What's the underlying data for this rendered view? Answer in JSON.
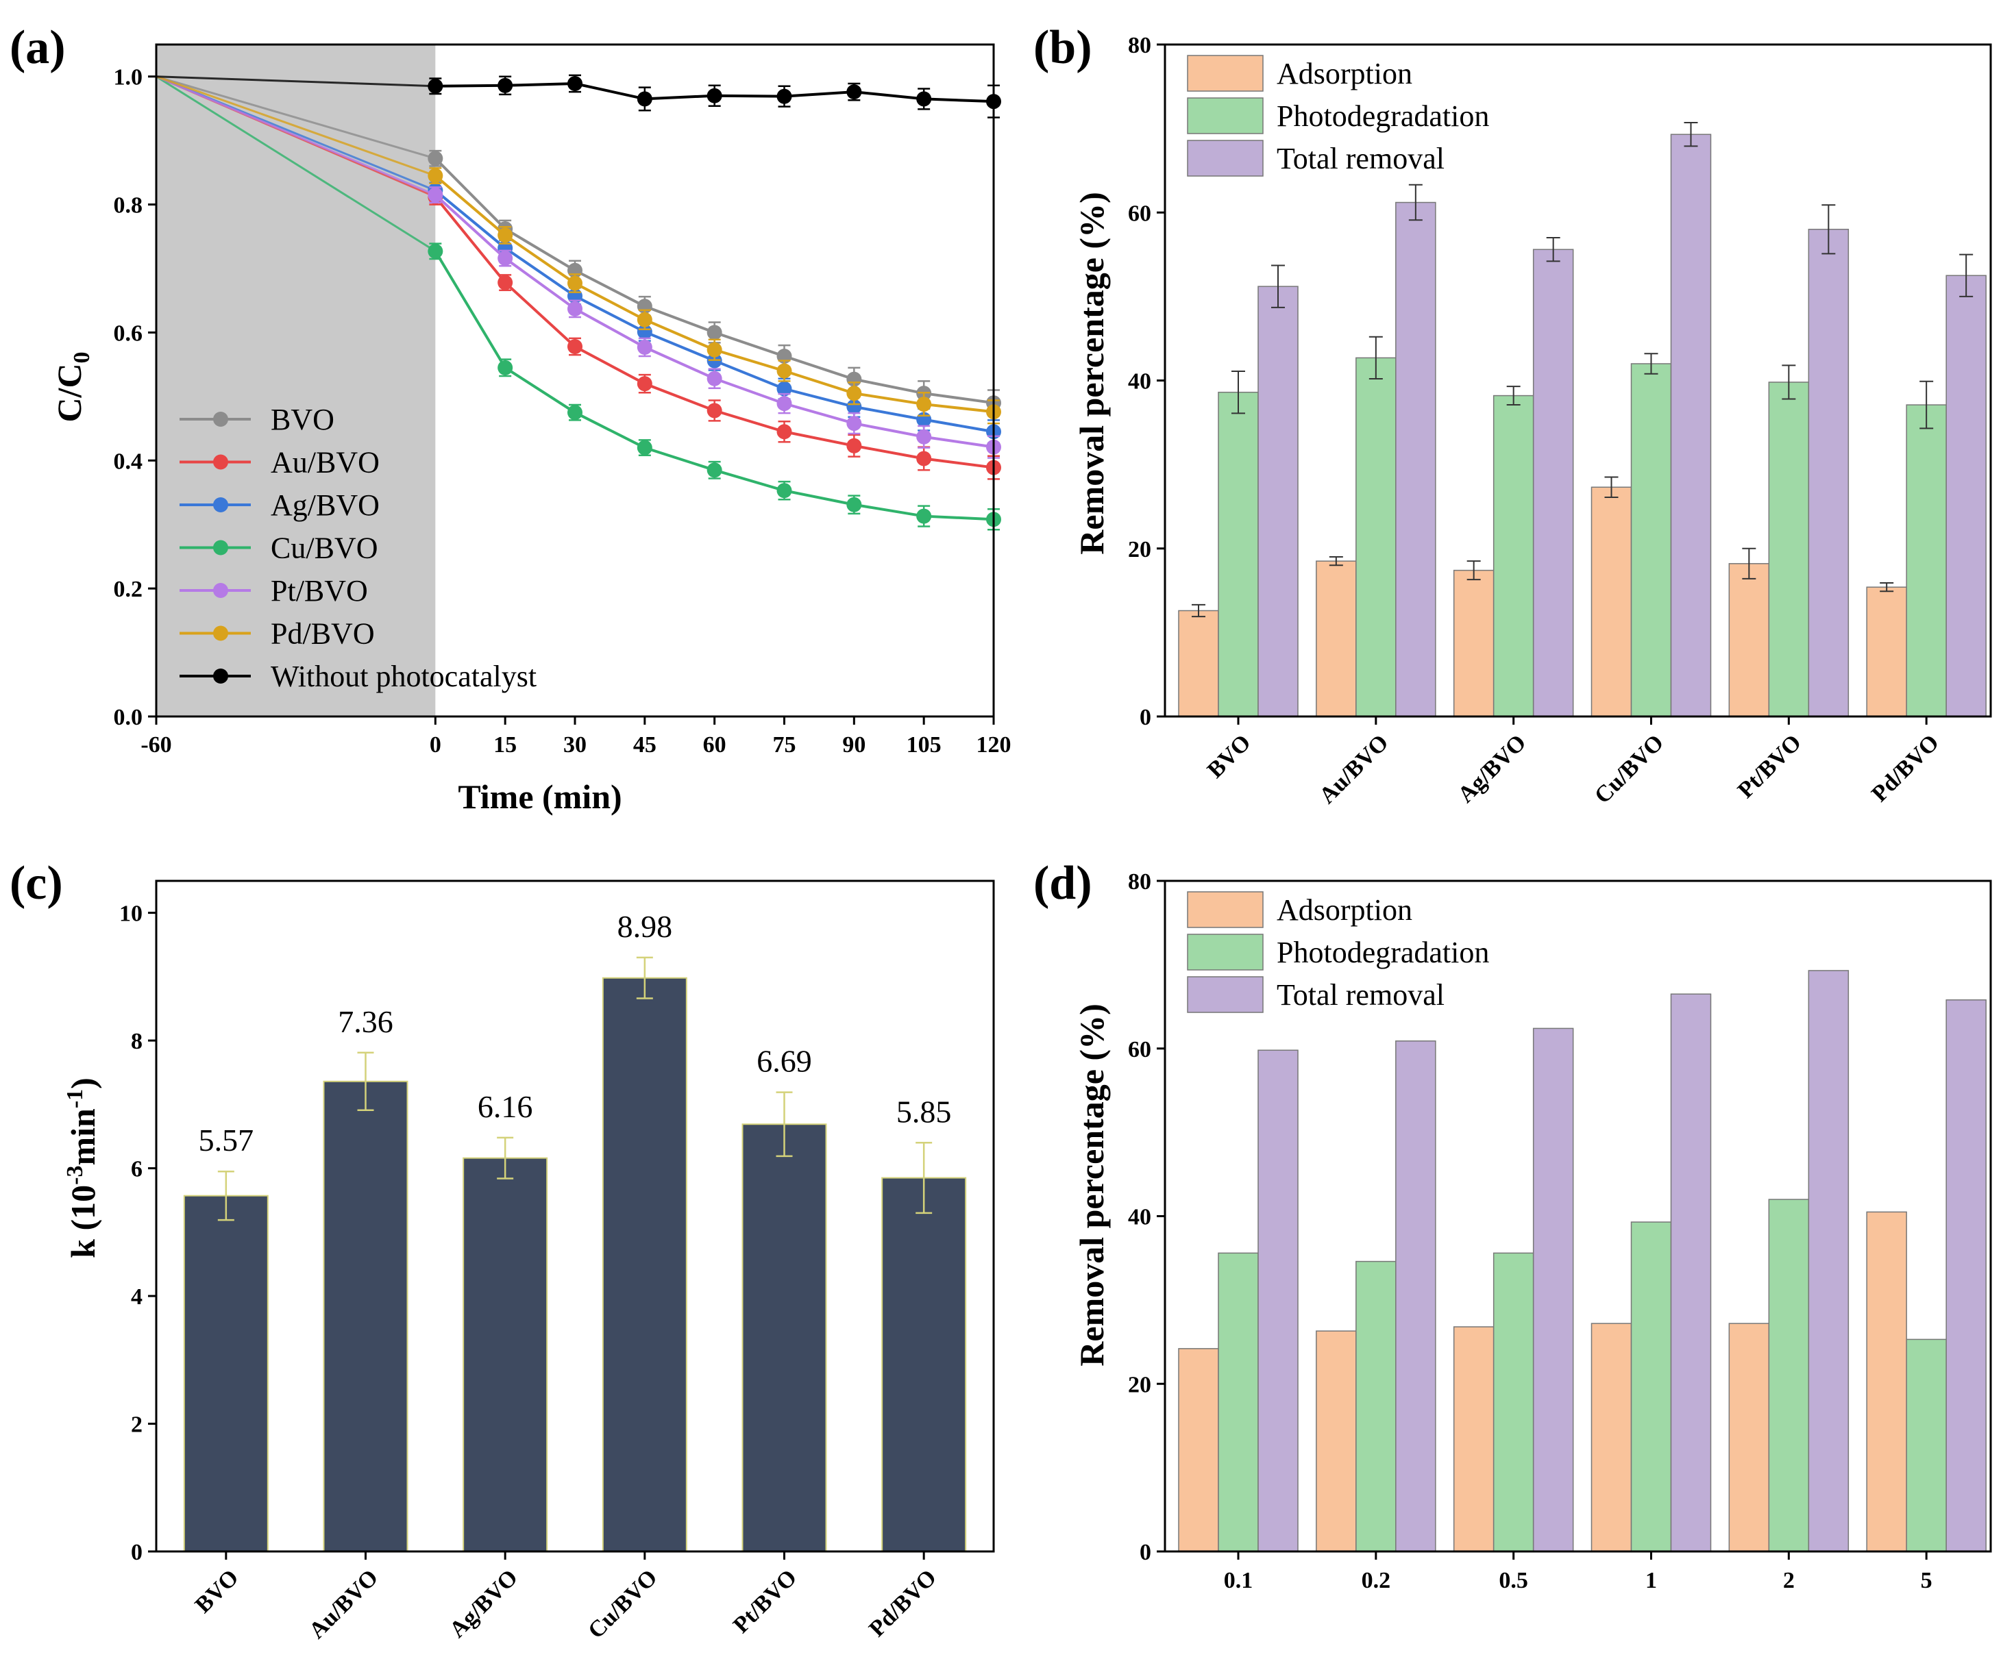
{
  "colors": {
    "adsorption": "#f9c39b",
    "photodegradation": "#9fd9a6",
    "total": "#bfaed6",
    "bar_c": "#3e4a60",
    "bar_c_edge": "#d4d27a",
    "shade": "#c9c9c9",
    "BVO": "#8c8c8c",
    "Au/BVO": "#e84545",
    "Ag/BVO": "#3a78d8",
    "Cu/BVO": "#2fb36b",
    "Pt/BVO": "#b57ae6",
    "Pd/BVO": "#d9a21b",
    "Without photocatalyst": "#000000"
  },
  "chart_data": [
    {
      "panel": "(a)",
      "type": "line",
      "xlabel": "Time (min)",
      "ylabel": "C/C0",
      "ylabel_main": "C/C",
      "ylabel_sub": "0",
      "xlim": [
        -60,
        120
      ],
      "ylim": [
        0,
        1.05
      ],
      "x_ticks": [
        -60,
        0,
        15,
        30,
        45,
        60,
        75,
        90,
        105,
        120
      ],
      "y_ticks": [
        "0.0",
        "0.2",
        "0.4",
        "0.6",
        "0.8",
        "1.0"
      ],
      "shaded_region": [
        -60,
        0
      ],
      "series": [
        {
          "name": "BVO",
          "x": [
            0,
            15,
            30,
            45,
            60,
            75,
            90,
            105,
            120
          ],
          "y": [
            0.872,
            0.762,
            0.697,
            0.641,
            0.6,
            0.563,
            0.527,
            0.505,
            0.49
          ],
          "err": [
            0.012,
            0.013,
            0.015,
            0.015,
            0.016,
            0.017,
            0.018,
            0.019,
            0.02
          ]
        },
        {
          "name": "Au/BVO",
          "x": [
            0,
            15,
            30,
            45,
            60,
            75,
            90,
            105,
            120
          ],
          "y": [
            0.812,
            0.678,
            0.578,
            0.52,
            0.478,
            0.445,
            0.423,
            0.403,
            0.389
          ],
          "err": [
            0.012,
            0.012,
            0.013,
            0.014,
            0.016,
            0.016,
            0.017,
            0.018,
            0.018
          ]
        },
        {
          "name": "Ag/BVO",
          "x": [
            0,
            15,
            30,
            45,
            60,
            75,
            90,
            105,
            120
          ],
          "y": [
            0.822,
            0.732,
            0.657,
            0.601,
            0.556,
            0.512,
            0.484,
            0.464,
            0.445
          ],
          "err": [
            0.012,
            0.012,
            0.013,
            0.014,
            0.015,
            0.016,
            0.016,
            0.017,
            0.018
          ]
        },
        {
          "name": "Cu/BVO",
          "x": [
            0,
            15,
            30,
            45,
            60,
            75,
            90,
            105,
            120
          ],
          "y": [
            0.727,
            0.545,
            0.475,
            0.42,
            0.385,
            0.353,
            0.331,
            0.313,
            0.308
          ],
          "err": [
            0.012,
            0.013,
            0.012,
            0.012,
            0.013,
            0.014,
            0.014,
            0.016,
            0.016
          ]
        },
        {
          "name": "Pt/BVO",
          "x": [
            0,
            15,
            30,
            45,
            60,
            75,
            90,
            105,
            120
          ],
          "y": [
            0.815,
            0.716,
            0.637,
            0.577,
            0.528,
            0.489,
            0.458,
            0.437,
            0.421
          ],
          "err": [
            0.012,
            0.012,
            0.013,
            0.014,
            0.015,
            0.015,
            0.016,
            0.017,
            0.017
          ]
        },
        {
          "name": "Pd/BVO",
          "x": [
            0,
            15,
            30,
            45,
            60,
            75,
            90,
            105,
            120
          ],
          "y": [
            0.845,
            0.752,
            0.677,
            0.62,
            0.573,
            0.54,
            0.505,
            0.488,
            0.476
          ],
          "err": [
            0.012,
            0.013,
            0.014,
            0.015,
            0.016,
            0.016,
            0.017,
            0.018,
            0.018
          ]
        },
        {
          "name": "Without photocatalyst",
          "x": [
            0,
            15,
            30,
            45,
            60,
            75,
            90,
            105,
            120
          ],
          "y": [
            0.985,
            0.986,
            0.989,
            0.965,
            0.97,
            0.969,
            0.976,
            0.965,
            0.961
          ],
          "err": [
            0.012,
            0.014,
            0.013,
            0.018,
            0.016,
            0.016,
            0.013,
            0.016,
            0.025
          ]
        }
      ],
      "legend": [
        "BVO",
        "Au/BVO",
        "Ag/BVO",
        "Cu/BVO",
        "Pt/BVO",
        "Pd/BVO",
        "Without photocatalyst"
      ]
    },
    {
      "panel": "(b)",
      "type": "bar",
      "xlabel": "",
      "ylabel": "Removal percentage (%)",
      "ylim": [
        0,
        80
      ],
      "y_ticks": [
        "0",
        "20",
        "40",
        "60",
        "80"
      ],
      "categories": [
        "BVO",
        "Au/BVO",
        "Ag/BVO",
        "Cu/BVO",
        "Pt/BVO",
        "Pd/BVO"
      ],
      "series": [
        {
          "name": "Adsorption",
          "values": [
            12.6,
            18.5,
            17.4,
            27.3,
            18.2,
            15.4
          ],
          "err": [
            0.7,
            0.5,
            1.1,
            1.2,
            1.8,
            0.5
          ]
        },
        {
          "name": "Photodegradation",
          "values": [
            38.6,
            42.7,
            38.2,
            42.0,
            39.8,
            37.1
          ],
          "err": [
            2.5,
            2.5,
            1.1,
            1.2,
            2.0,
            2.8
          ]
        },
        {
          "name": "Total removal",
          "values": [
            51.2,
            61.2,
            55.6,
            69.3,
            58.0,
            52.5
          ],
          "err": [
            2.5,
            2.1,
            1.4,
            1.4,
            2.9,
            2.5
          ]
        }
      ],
      "legend": [
        "Adsorption",
        "Photodegradation",
        "Total removal"
      ]
    },
    {
      "panel": "(c)",
      "type": "bar",
      "xlabel": "",
      "ylabel": "k (10-3min-1)",
      "ylabel_parts": {
        "a": "k (10",
        "b": "-3",
        "c": "min",
        "d": "-1",
        "e": ")"
      },
      "ylim": [
        0,
        10.5
      ],
      "y_ticks": [
        "0",
        "2",
        "4",
        "6",
        "8",
        "10"
      ],
      "categories": [
        "BVO",
        "Au/BVO",
        "Ag/BVO",
        "Cu/BVO",
        "Pt/BVO",
        "Pd/BVO"
      ],
      "values": [
        5.57,
        7.36,
        6.16,
        8.98,
        6.69,
        5.85
      ],
      "err": [
        0.38,
        0.45,
        0.32,
        0.32,
        0.5,
        0.55
      ],
      "data_labels": [
        "5.57",
        "7.36",
        "6.16",
        "8.98",
        "6.69",
        "5.85"
      ]
    },
    {
      "panel": "(d)",
      "type": "bar",
      "xlabel": "",
      "ylabel": "Removal percentage (%)",
      "ylim": [
        0,
        80
      ],
      "y_ticks": [
        "0",
        "20",
        "40",
        "60",
        "80"
      ],
      "categories": [
        "0.1",
        "0.2",
        "0.5",
        "1",
        "2",
        "5"
      ],
      "series": [
        {
          "name": "Adsorption",
          "values": [
            24.2,
            26.3,
            26.8,
            27.2,
            27.2,
            40.5
          ]
        },
        {
          "name": "Photodegradation",
          "values": [
            35.6,
            34.6,
            35.6,
            39.3,
            42.0,
            25.3
          ]
        },
        {
          "name": "Total removal",
          "values": [
            59.8,
            60.9,
            62.4,
            66.5,
            69.3,
            65.8
          ]
        }
      ],
      "legend": [
        "Adsorption",
        "Photodegradation",
        "Total removal"
      ]
    }
  ]
}
